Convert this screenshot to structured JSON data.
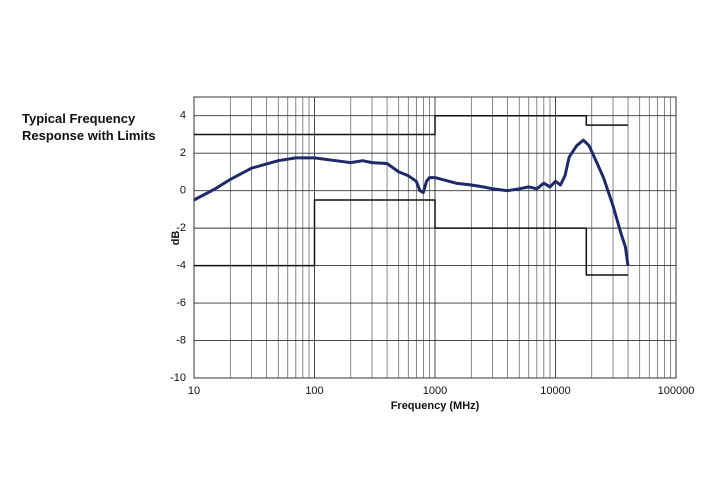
{
  "chart_data": {
    "type": "line",
    "title": "Typical Frequency Response with Limits",
    "xlabel": "Frequency (MHz)",
    "ylabel": "dB",
    "xscale": "log",
    "xlim": [
      10,
      100000
    ],
    "xticks": [
      10,
      100,
      1000,
      10000,
      100000
    ],
    "xminorticks": [
      20,
      30,
      40,
      50,
      60,
      70,
      80,
      90,
      200,
      300,
      400,
      500,
      600,
      700,
      800,
      900,
      2000,
      3000,
      4000,
      5000,
      6000,
      7000,
      8000,
      9000,
      20000,
      30000,
      40000,
      50000,
      60000,
      70000,
      80000,
      90000
    ],
    "ylim": [
      -10,
      5
    ],
    "yticks": [
      -10,
      -8,
      -6,
      -4,
      -2,
      0,
      2,
      4
    ],
    "grid": true,
    "series": [
      {
        "color": "#1f2a6b",
        "x": [
          10,
          15,
          20,
          30,
          50,
          70,
          100,
          150,
          200,
          250,
          300,
          400,
          500,
          600,
          700,
          750,
          800,
          850,
          900,
          1000,
          1500,
          2000,
          2500,
          3000,
          4000,
          5000,
          6000,
          7000,
          8000,
          9000,
          10000,
          11000,
          12000,
          13000,
          15000,
          17000,
          19000,
          22000,
          25000,
          30000,
          35000,
          38000,
          40000
        ],
        "values": [
          -0.5,
          0.1,
          0.6,
          1.2,
          1.6,
          1.75,
          1.75,
          1.6,
          1.5,
          1.6,
          1.5,
          1.45,
          1.0,
          0.8,
          0.5,
          0,
          -0.1,
          0.5,
          0.7,
          0.7,
          0.4,
          0.3,
          0.2,
          0.1,
          0.0,
          0.1,
          0.2,
          0.1,
          0.4,
          0.2,
          0.5,
          0.3,
          0.8,
          1.8,
          2.4,
          2.7,
          2.4,
          1.5,
          0.7,
          -0.8,
          -2.3,
          -3.0,
          -4.0
        ]
      },
      {
        "color": "#111111",
        "x": [
          10,
          1000,
          1000,
          18000,
          18000,
          40000
        ],
        "values": [
          3,
          3,
          4,
          4,
          3.5,
          3.5
        ]
      },
      {
        "color": "#111111",
        "x": [
          10,
          100,
          100,
          1000,
          1000,
          18000,
          18000,
          40000
        ],
        "values": [
          -4,
          -4,
          -0.5,
          -0.5,
          -2,
          -2,
          -4.5,
          -4.5
        ]
      }
    ]
  }
}
